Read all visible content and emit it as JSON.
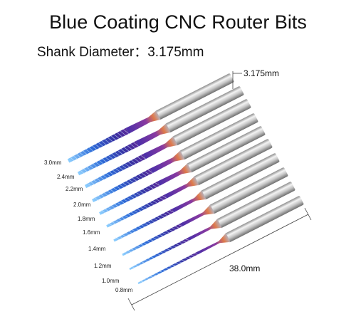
{
  "header": {
    "title": "Blue Coating CNC Router Bits",
    "subtitle": "Shank Diameter：3.175mm"
  },
  "dimensions": {
    "shank": "3.175mm",
    "length": "38.0mm"
  },
  "bits": [
    "3.0mm",
    "2.4mm",
    "2.2mm",
    "2.0mm",
    "1.8mm",
    "1.6mm",
    "1.4mm",
    "1.2mm",
    "1.0mm",
    "0.8mm"
  ]
}
